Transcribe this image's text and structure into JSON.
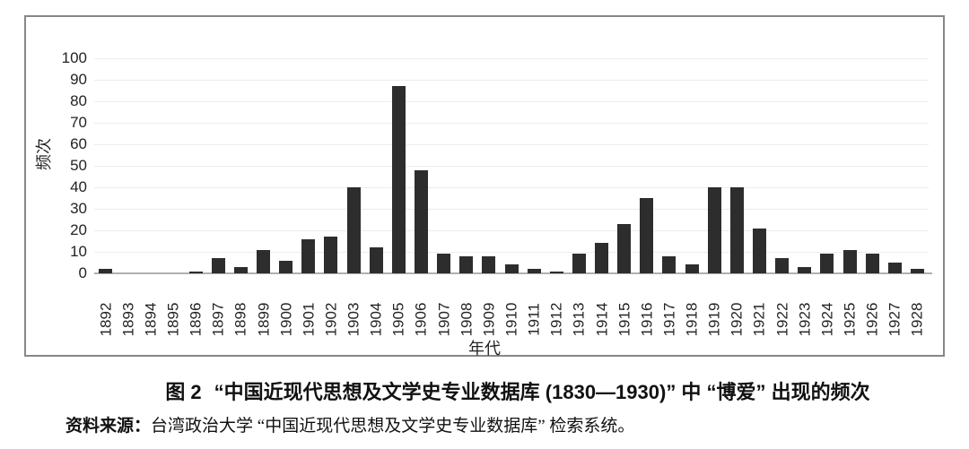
{
  "figure": {
    "caption_label": "图 2",
    "caption_text": "“中国近现代思想及文学史专业数据库 (1830—1930)” 中 “博爱” 出现的频次",
    "source_label": "资料来源：",
    "source_text": "台湾政治大学 “中国近现代思想及文学史专业数据库” 检索系统。"
  },
  "chart_data": {
    "type": "bar",
    "title": "",
    "xlabel": "年代",
    "ylabel": "频次",
    "categories": [
      "1892",
      "1893",
      "1894",
      "1895",
      "1896",
      "1897",
      "1898",
      "1899",
      "1900",
      "1901",
      "1902",
      "1903",
      "1904",
      "1905",
      "1906",
      "1907",
      "1908",
      "1909",
      "1910",
      "1911",
      "1912",
      "1913",
      "1914",
      "1915",
      "1916",
      "1917",
      "1918",
      "1919",
      "1920",
      "1921",
      "1922",
      "1923",
      "1924",
      "1925",
      "1926",
      "1927",
      "1928"
    ],
    "values": [
      2,
      0,
      0,
      0,
      1,
      7,
      3,
      11,
      6,
      16,
      17,
      40,
      12,
      87,
      48,
      9,
      8,
      8,
      4,
      2,
      1,
      9,
      14,
      23,
      35,
      8,
      4,
      40,
      40,
      21,
      7,
      3,
      9,
      11,
      9,
      5,
      2
    ],
    "ylim": [
      0,
      100
    ],
    "ytick_interval": 10,
    "grid": true,
    "legend": "none",
    "colors": {
      "bar": "#2d2d2d",
      "gridline": "#ececec",
      "baseline": "#b0b0b0",
      "border": "#878787",
      "text": "#232323"
    }
  }
}
